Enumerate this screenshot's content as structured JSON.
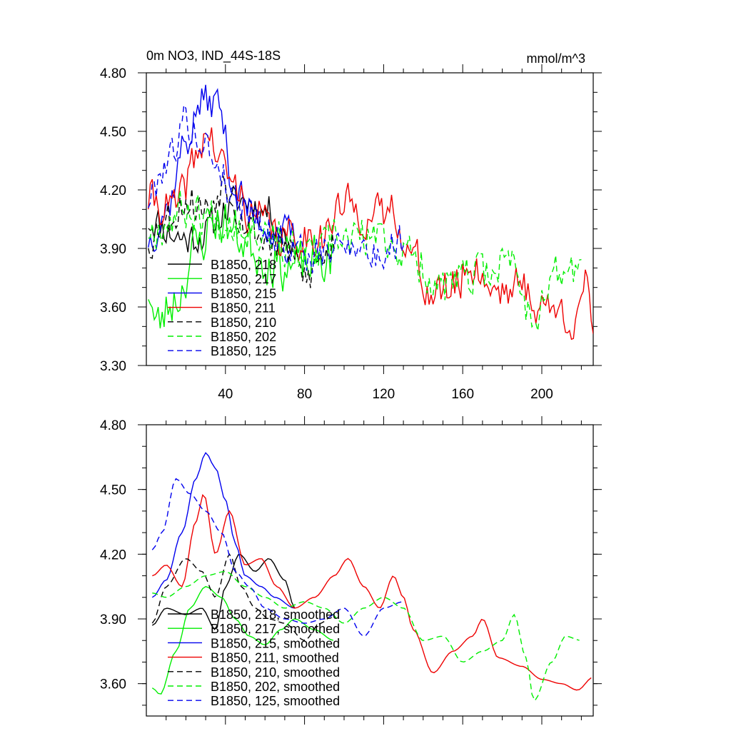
{
  "chart_data": [
    {
      "type": "line",
      "title": "0m NO3, IND_44S-18S",
      "units": "mmol/m^3",
      "xlabel": "",
      "ylabel": "",
      "xlim": [
        0,
        226
      ],
      "ylim": [
        3.3,
        4.8
      ],
      "yticks": [
        "3.30",
        "3.60",
        "3.90",
        "4.20",
        "4.50",
        "4.80"
      ],
      "xticks": [
        "40",
        "80",
        "120",
        "160",
        "200"
      ],
      "legend_position": "lower-left",
      "series": [
        {
          "name": "B1850, 218",
          "color": "#000000",
          "dash": "solid",
          "length": 75,
          "mean": 3.98,
          "start": 4.0,
          "end": 3.9,
          "noise": 0.09,
          "seed": 11,
          "anchors": [
            [
              1,
              4.05
            ],
            [
              20,
              3.95
            ],
            [
              30,
              3.98
            ],
            [
              40,
              4.1
            ],
            [
              50,
              4.15
            ],
            [
              60,
              4.1
            ],
            [
              75,
              3.92
            ]
          ]
        },
        {
          "name": "B1850, 217",
          "color": "#00ee00",
          "dash": "solid",
          "length": 95,
          "mean": 3.85,
          "start": 3.7,
          "end": 3.8,
          "noise": 0.12,
          "seed": 23,
          "anchors": [
            [
              1,
              3.7
            ],
            [
              5,
              3.5
            ],
            [
              15,
              3.65
            ],
            [
              25,
              3.9
            ],
            [
              35,
              4.05
            ],
            [
              50,
              3.95
            ],
            [
              60,
              3.85
            ],
            [
              75,
              3.8
            ],
            [
              95,
              3.85
            ]
          ]
        },
        {
          "name": "B1850, 215",
          "color": "#0000ee",
          "dash": "solid",
          "length": 75,
          "mean": 4.1,
          "start": 3.95,
          "end": 3.95,
          "noise": 0.09,
          "seed": 37,
          "anchors": [
            [
              1,
              3.95
            ],
            [
              10,
              4.1
            ],
            [
              20,
              4.45
            ],
            [
              28,
              4.65
            ],
            [
              36,
              4.65
            ],
            [
              45,
              4.2
            ],
            [
              55,
              4.05
            ],
            [
              65,
              4.0
            ],
            [
              75,
              3.95
            ]
          ]
        },
        {
          "name": "B1850, 211",
          "color": "#ee0000",
          "dash": "solid",
          "length": 226,
          "mean": 3.85,
          "start": 4.15,
          "end": 3.4,
          "noise": 0.1,
          "seed": 41,
          "anchors": [
            [
              1,
              4.15
            ],
            [
              15,
              4.1
            ],
            [
              25,
              4.35
            ],
            [
              30,
              4.5
            ],
            [
              40,
              4.3
            ],
            [
              45,
              4.2
            ],
            [
              55,
              4.05
            ],
            [
              70,
              3.95
            ],
            [
              90,
              3.98
            ],
            [
              100,
              4.12
            ],
            [
              115,
              4.05
            ],
            [
              125,
              4.1
            ],
            [
              135,
              3.85
            ],
            [
              145,
              3.65
            ],
            [
              155,
              3.7
            ],
            [
              165,
              3.82
            ],
            [
              175,
              3.7
            ],
            [
              190,
              3.7
            ],
            [
              200,
              3.6
            ],
            [
              215,
              3.55
            ],
            [
              222,
              3.7
            ],
            [
              226,
              3.4
            ]
          ]
        },
        {
          "name": "B1850, 210",
          "color": "#000000",
          "dash": "dashed",
          "length": 95,
          "mean": 4.0,
          "start": 3.95,
          "end": 3.95,
          "noise": 0.1,
          "seed": 53,
          "anchors": [
            [
              1,
              3.95
            ],
            [
              10,
              4.05
            ],
            [
              20,
              4.15
            ],
            [
              30,
              4.1
            ],
            [
              40,
              4.25
            ],
            [
              50,
              4.05
            ],
            [
              60,
              3.95
            ],
            [
              70,
              3.9
            ],
            [
              80,
              3.75
            ],
            [
              90,
              3.85
            ],
            [
              95,
              3.95
            ]
          ]
        },
        {
          "name": "B1850, 202",
          "color": "#00ee00",
          "dash": "dashed",
          "length": 220,
          "mean": 3.9,
          "start": 4.0,
          "end": 3.8,
          "noise": 0.1,
          "seed": 67,
          "anchors": [
            [
              1,
              4.0
            ],
            [
              20,
              4.1
            ],
            [
              40,
              4.05
            ],
            [
              60,
              4.0
            ],
            [
              80,
              3.85
            ],
            [
              100,
              3.95
            ],
            [
              120,
              3.95
            ],
            [
              135,
              3.85
            ],
            [
              150,
              3.7
            ],
            [
              165,
              3.75
            ],
            [
              185,
              3.85
            ],
            [
              195,
              3.55
            ],
            [
              205,
              3.75
            ],
            [
              220,
              3.8
            ]
          ]
        },
        {
          "name": "B1850, 125",
          "color": "#0000ee",
          "dash": "dashed",
          "length": 130,
          "mean": 4.05,
          "start": 4.15,
          "end": 3.95,
          "noise": 0.09,
          "seed": 79,
          "anchors": [
            [
              1,
              4.15
            ],
            [
              10,
              4.35
            ],
            [
              20,
              4.55
            ],
            [
              28,
              4.45
            ],
            [
              35,
              4.35
            ],
            [
              45,
              4.15
            ],
            [
              55,
              4.1
            ],
            [
              65,
              3.95
            ],
            [
              75,
              3.9
            ],
            [
              85,
              3.85
            ],
            [
              95,
              3.9
            ],
            [
              105,
              3.95
            ],
            [
              115,
              3.85
            ],
            [
              130,
              3.95
            ]
          ]
        }
      ]
    },
    {
      "type": "line",
      "title": "",
      "units": "",
      "xlabel": "",
      "ylabel": "",
      "xlim": [
        0,
        226
      ],
      "ylim": [
        3.45,
        4.8
      ],
      "yticks": [
        "3.60",
        "3.90",
        "4.20",
        "4.50",
        "4.80"
      ],
      "xticks": [],
      "legend_position": "lower-left",
      "series": [
        {
          "name": "B1850, 218, smoothed",
          "color": "#000000",
          "dash": "solid",
          "length": 75,
          "anchors": [
            [
              3,
              3.87
            ],
            [
              10,
              3.95
            ],
            [
              20,
              3.92
            ],
            [
              28,
              3.95
            ],
            [
              35,
              3.85
            ],
            [
              40,
              4.05
            ],
            [
              47,
              4.2
            ],
            [
              55,
              4.12
            ],
            [
              62,
              4.18
            ],
            [
              70,
              4.08
            ],
            [
              75,
              3.95
            ]
          ]
        },
        {
          "name": "B1850, 217, smoothed",
          "color": "#00ee00",
          "dash": "solid",
          "length": 95,
          "anchors": [
            [
              3,
              3.58
            ],
            [
              7,
              3.55
            ],
            [
              15,
              3.75
            ],
            [
              22,
              3.95
            ],
            [
              30,
              4.05
            ],
            [
              38,
              4.0
            ],
            [
              45,
              3.9
            ],
            [
              52,
              3.82
            ],
            [
              60,
              3.78
            ],
            [
              68,
              3.85
            ],
            [
              75,
              3.9
            ],
            [
              85,
              3.85
            ],
            [
              95,
              3.8
            ]
          ]
        },
        {
          "name": "B1850, 215, smoothed",
          "color": "#0000ee",
          "dash": "solid",
          "length": 75,
          "anchors": [
            [
              3,
              4.0
            ],
            [
              10,
              4.08
            ],
            [
              18,
              4.3
            ],
            [
              25,
              4.55
            ],
            [
              30,
              4.67
            ],
            [
              35,
              4.6
            ],
            [
              40,
              4.45
            ],
            [
              45,
              4.25
            ],
            [
              50,
              4.1
            ],
            [
              58,
              4.05
            ],
            [
              65,
              4.0
            ],
            [
              75,
              3.95
            ]
          ]
        },
        {
          "name": "B1850, 211, smoothed",
          "color": "#ee0000",
          "dash": "solid",
          "length": 226,
          "anchors": [
            [
              3,
              4.1
            ],
            [
              10,
              4.15
            ],
            [
              18,
              4.05
            ],
            [
              25,
              4.35
            ],
            [
              29,
              4.48
            ],
            [
              35,
              4.2
            ],
            [
              42,
              4.4
            ],
            [
              50,
              4.15
            ],
            [
              58,
              4.18
            ],
            [
              66,
              4.05
            ],
            [
              75,
              3.95
            ],
            [
              85,
              4.0
            ],
            [
              95,
              4.1
            ],
            [
              102,
              4.18
            ],
            [
              110,
              4.05
            ],
            [
              118,
              3.95
            ],
            [
              125,
              4.1
            ],
            [
              130,
              4.0
            ],
            [
              135,
              3.85
            ],
            [
              145,
              3.65
            ],
            [
              155,
              3.75
            ],
            [
              165,
              3.82
            ],
            [
              170,
              3.9
            ],
            [
              178,
              3.72
            ],
            [
              190,
              3.68
            ],
            [
              200,
              3.62
            ],
            [
              210,
              3.6
            ],
            [
              218,
              3.57
            ],
            [
              226,
              3.63
            ]
          ]
        },
        {
          "name": "B1850, 210, smoothed",
          "color": "#000000",
          "dash": "dashed",
          "length": 95,
          "anchors": [
            [
              3,
              3.88
            ],
            [
              10,
              4.05
            ],
            [
              20,
              4.18
            ],
            [
              28,
              4.12
            ],
            [
              35,
              4.0
            ],
            [
              42,
              4.2
            ],
            [
              48,
              4.05
            ],
            [
              55,
              3.95
            ],
            [
              62,
              3.9
            ],
            [
              70,
              3.88
            ],
            [
              80,
              3.8
            ],
            [
              88,
              3.88
            ],
            [
              95,
              3.92
            ]
          ]
        },
        {
          "name": "B1850, 202, smoothed",
          "color": "#00ee00",
          "dash": "dashed",
          "length": 220,
          "anchors": [
            [
              3,
              4.02
            ],
            [
              10,
              4.0
            ],
            [
              20,
              4.05
            ],
            [
              30,
              4.1
            ],
            [
              40,
              4.12
            ],
            [
              50,
              4.05
            ],
            [
              60,
              4.0
            ],
            [
              70,
              3.95
            ],
            [
              80,
              3.98
            ],
            [
              90,
              3.95
            ],
            [
              100,
              3.88
            ],
            [
              110,
              3.95
            ],
            [
              120,
              4.0
            ],
            [
              130,
              3.95
            ],
            [
              140,
              3.8
            ],
            [
              150,
              3.82
            ],
            [
              160,
              3.7
            ],
            [
              170,
              3.75
            ],
            [
              180,
              3.8
            ],
            [
              186,
              3.92
            ],
            [
              192,
              3.72
            ],
            [
              196,
              3.52
            ],
            [
              205,
              3.7
            ],
            [
              212,
              3.82
            ],
            [
              220,
              3.8
            ]
          ]
        },
        {
          "name": "B1850, 125, smoothed",
          "color": "#0000ee",
          "dash": "dashed",
          "length": 130,
          "anchors": [
            [
              3,
              4.22
            ],
            [
              8,
              4.3
            ],
            [
              15,
              4.55
            ],
            [
              22,
              4.48
            ],
            [
              30,
              4.4
            ],
            [
              38,
              4.3
            ],
            [
              45,
              4.12
            ],
            [
              52,
              4.05
            ],
            [
              60,
              3.95
            ],
            [
              70,
              3.9
            ],
            [
              80,
              3.88
            ],
            [
              90,
              3.9
            ],
            [
              100,
              3.95
            ],
            [
              110,
              3.82
            ],
            [
              120,
              3.95
            ],
            [
              130,
              3.98
            ]
          ]
        }
      ]
    }
  ]
}
